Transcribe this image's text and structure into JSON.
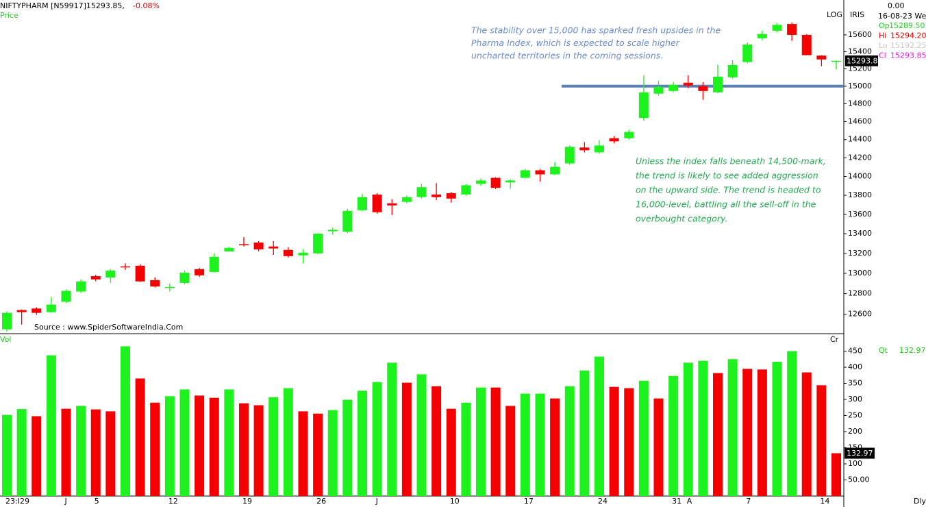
{
  "chart_data": [
    {
      "type": "candlestick",
      "title": "NIFTYPHARM [N59917]15293.85,",
      "change": "-0.08%",
      "panel_label": "Price",
      "scale_label": "LOG",
      "indicator_label": "IRIS",
      "log_scale": true,
      "source": "Source : www.SpiderSoftwareIndia.Com",
      "up_color": "#1ef21e",
      "down_color": "#f40000",
      "categories": [
        "23:I29",
        null,
        null,
        null,
        "J",
        null,
        "5",
        null,
        null,
        null,
        null,
        "12",
        null,
        null,
        null,
        null,
        "19",
        null,
        null,
        null,
        null,
        "26",
        null,
        null,
        null,
        "J",
        null,
        null,
        null,
        null,
        "10",
        null,
        null,
        null,
        null,
        "17",
        null,
        null,
        null,
        null,
        "24",
        null,
        null,
        null,
        null,
        "31",
        "A",
        null,
        null,
        null,
        "7",
        null,
        null,
        null,
        null,
        "14",
        null
      ],
      "open": [
        12455,
        12640,
        12655,
        12620,
        12720,
        12820,
        12972,
        12958,
        13069,
        13076,
        12933,
        12855,
        12905,
        13042,
        13014,
        13220,
        13293,
        13310,
        13270,
        13235,
        13180,
        13200,
        13425,
        13420,
        13643,
        13807,
        13715,
        13730,
        13780,
        13808,
        13822,
        13808,
        13920,
        13985,
        13936,
        13985,
        14066,
        14022,
        14140,
        14313,
        14260,
        14415,
        14415,
        14640,
        14915,
        14945,
        15040,
        15000,
        14930,
        15102,
        15280,
        15560,
        15650,
        15730,
        15600,
        15355,
        15289.5
      ],
      "high": [
        12627,
        12645,
        12668,
        12768,
        12840,
        12940,
        12986,
        13042,
        13100,
        13090,
        12960,
        12900,
        13028,
        13055,
        13200,
        13270,
        13365,
        13325,
        13325,
        13262,
        13242,
        13407,
        13462,
        13658,
        13815,
        13822,
        13758,
        13795,
        13920,
        13928,
        13836,
        13920,
        13978,
        13992,
        13970,
        14080,
        14080,
        14155,
        14335,
        14373,
        14393,
        14440,
        14508,
        15125,
        15063,
        15047,
        15125,
        15047,
        15250,
        15300,
        15510,
        15650,
        15740,
        15750,
        15610,
        15360,
        15294.2
      ],
      "low": [
        12435,
        12500,
        12593,
        12613,
        12707,
        12807,
        12920,
        12905,
        13035,
        12915,
        12860,
        12820,
        12893,
        12965,
        13007,
        13220,
        13270,
        13220,
        13185,
        13158,
        13097,
        13193,
        13390,
        13407,
        13630,
        13608,
        13593,
        13715,
        13765,
        13750,
        13722,
        13795,
        13900,
        13865,
        13870,
        13978,
        13943,
        14015,
        14125,
        14260,
        14245,
        14357,
        14400,
        14610,
        14890,
        14930,
        14977,
        14845,
        14922,
        15087,
        15265,
        15535,
        15630,
        15530,
        15360,
        15230,
        15192.25
      ],
      "close": [
        12613,
        12620,
        12613,
        12693,
        12827,
        12920,
        12940,
        13028,
        13062,
        12920,
        12870,
        12865,
        13007,
        12980,
        13165,
        13255,
        13285,
        13240,
        13250,
        13172,
        13207,
        13400,
        13440,
        13636,
        13780,
        13622,
        13693,
        13780,
        13885,
        13780,
        13765,
        13906,
        13957,
        13878,
        13957,
        14066,
        14022,
        14103,
        14320,
        14283,
        14335,
        14380,
        14484,
        14930,
        14993,
        15016,
        15008,
        14945,
        15110,
        15245,
        15485,
        15610,
        15720,
        15600,
        15360,
        15310,
        15293.85
      ],
      "ylim": [
        12414,
        16022
      ],
      "yticks": [
        12600,
        12800,
        13000,
        13200,
        13400,
        13600,
        13800,
        14000,
        14200,
        14400,
        14600,
        14800,
        15000,
        15200,
        15400,
        15600
      ],
      "reference_line": {
        "value": 15000,
        "color": "#5b7fb4"
      },
      "annotations": [
        {
          "color": "#6a8ccc",
          "lines": [
            "The stability over 15,000 has sparked fresh upsides in the",
            "Pharma Index, which is expected to scale higher",
            "uncharted territories in the coming sessions."
          ]
        },
        {
          "color": "#22aa50",
          "lines": [
            "Unless the index falls beneath 14,500-mark,",
            "the trend is likely to see added aggression",
            "on the upward side. The trend is headed to",
            "16,000-level, battling all the sell-off in the",
            "overbought category."
          ]
        }
      ],
      "last_bar": {
        "readout": "0.00",
        "date": "16-08-23 We",
        "labels": [
          "Op",
          "Hi",
          "Lo",
          "Cl"
        ],
        "value_labels": [
          "15289.50",
          "15294.20",
          "15192.25",
          "15293.85"
        ],
        "colors": [
          "#1ecc1e",
          "#e00000",
          "#c8c8c8",
          "#e020e0"
        ]
      }
    },
    {
      "type": "bar",
      "panel_label": "Vol",
      "corner_label": "Cr",
      "quantity_label": "Qt",
      "period_label": "Dly",
      "values": [
        252,
        270,
        248,
        437,
        271,
        280,
        269,
        263,
        465,
        365,
        290,
        310,
        331,
        312,
        305,
        331,
        288,
        282,
        307,
        335,
        263,
        256,
        267,
        299,
        327,
        354,
        414,
        352,
        378,
        341,
        271,
        290,
        337,
        337,
        280,
        318,
        318,
        303,
        341,
        390,
        433,
        339,
        335,
        358,
        303,
        373,
        414,
        420,
        382,
        425,
        395,
        393,
        417,
        450,
        384,
        344,
        132.97
      ],
      "colors": [
        "#1ef21e",
        "#1ef21e",
        "#f40000",
        "#1ef21e",
        "#f40000",
        "#1ef21e",
        "#f40000",
        "#f40000",
        "#1ef21e",
        "#f40000",
        "#f40000",
        "#1ef21e",
        "#1ef21e",
        "#f40000",
        "#f40000",
        "#1ef21e",
        "#f40000",
        "#f40000",
        "#1ef21e",
        "#1ef21e",
        "#f40000",
        "#f40000",
        "#1ef21e",
        "#1ef21e",
        "#1ef21e",
        "#1ef21e",
        "#1ef21e",
        "#f40000",
        "#1ef21e",
        "#f40000",
        "#f40000",
        "#1ef21e",
        "#1ef21e",
        "#f40000",
        "#f40000",
        "#1ef21e",
        "#1ef21e",
        "#f40000",
        "#1ef21e",
        "#1ef21e",
        "#1ef21e",
        "#f40000",
        "#f40000",
        "#1ef21e",
        "#f40000",
        "#1ef21e",
        "#1ef21e",
        "#1ef21e",
        "#f40000",
        "#1ef21e",
        "#f40000",
        "#f40000",
        "#1ef21e",
        "#1ef21e",
        "#f40000",
        "#f40000",
        "#f40000"
      ],
      "ylim": [
        0,
        500
      ],
      "yticks": [
        {
          "value": 50,
          "label": "50.00"
        },
        100,
        150,
        200,
        250,
        300,
        350,
        400,
        450
      ]
    }
  ]
}
